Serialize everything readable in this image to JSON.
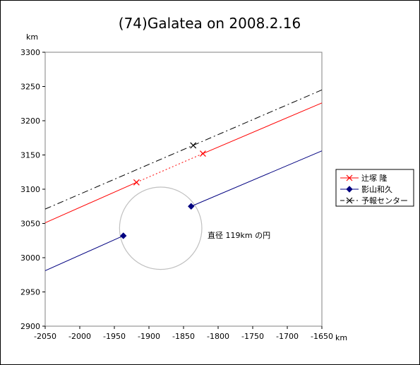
{
  "chart_data": {
    "type": "line",
    "title": "(74)Galatea on 2008.2.16",
    "x_unit": "km",
    "y_unit": "km",
    "xlim": [
      -2050,
      -1650
    ],
    "ylim": [
      2900,
      3300
    ],
    "x_ticks": [
      -2050,
      -2000,
      -1950,
      -1900,
      -1850,
      -1800,
      -1750,
      -1700,
      -1650
    ],
    "y_ticks": [
      2900,
      2950,
      3000,
      3050,
      3100,
      3150,
      3200,
      3250,
      3300
    ],
    "x_tick_labels": [
      "-2050",
      "-2000",
      "-1950",
      "-1900",
      "-1850",
      "-1800",
      "-1750",
      "-1700",
      "-1650"
    ],
    "y_tick_labels": [
      "2900",
      "2950",
      "3000",
      "3050",
      "3100",
      "3150",
      "3200",
      "3250",
      "3300"
    ],
    "grid": false,
    "legend_position": "right",
    "series": [
      {
        "name": "辻塚 隆",
        "color": "#ff0000",
        "marker": "x",
        "segments": [
          {
            "style": "solid",
            "points": [
              [
                -2050,
                3051
              ],
              [
                -1918,
                3110
              ]
            ]
          },
          {
            "style": "dotted",
            "points": [
              [
                -1918,
                3110
              ],
              [
                -1822,
                3152
              ]
            ]
          },
          {
            "style": "solid",
            "points": [
              [
                -1822,
                3152
              ],
              [
                -1650,
                3226
              ]
            ]
          }
        ],
        "markers": [
          [
            -1918,
            3110
          ],
          [
            -1822,
            3152
          ]
        ]
      },
      {
        "name": "影山和久",
        "color": "#000080",
        "marker": "diamond",
        "segments": [
          {
            "style": "solid",
            "points": [
              [
                -2050,
                2981
              ],
              [
                -1937,
                3032
              ]
            ]
          },
          {
            "style": "solid",
            "points": [
              [
                -1839,
                3075
              ],
              [
                -1650,
                3156
              ]
            ]
          }
        ],
        "markers": [
          [
            -1937,
            3032
          ],
          [
            -1839,
            3075
          ]
        ]
      },
      {
        "name": "予報センター",
        "color": "#000000",
        "marker": "x",
        "segments": [
          {
            "style": "dashdot",
            "points": [
              [
                -2050,
                3071
              ],
              [
                -1650,
                3245
              ]
            ]
          }
        ],
        "markers": [
          [
            -1836,
            3164
          ]
        ]
      }
    ],
    "circle": {
      "center": [
        -1883,
        3043
      ],
      "diameter": 119,
      "color": "#c0c0c0"
    },
    "annotation": "直径 119km の円"
  }
}
